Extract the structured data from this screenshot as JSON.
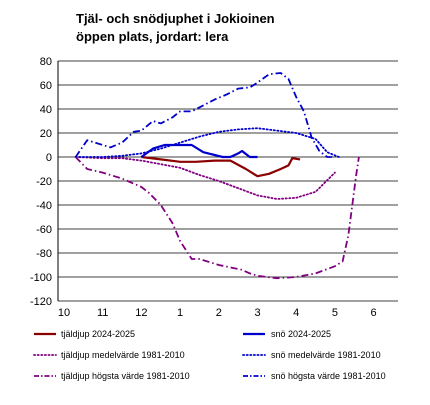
{
  "chart_data": {
    "type": "line",
    "title_lines": [
      "Tjäl- och snödjuphet i Jokioinen",
      "öppen plats, jordart: lera"
    ],
    "xlabel": "",
    "ylabel": "",
    "ylim": [
      -120,
      80
    ],
    "yticks": [
      -120,
      -100,
      -80,
      -60,
      -40,
      -20,
      0,
      20,
      40,
      60,
      80
    ],
    "xlim": [
      10,
      6.9
    ],
    "xticks": [
      "10",
      "11",
      "12",
      "1",
      "2",
      "3",
      "4",
      "5",
      "6"
    ],
    "grid": "horizontal",
    "legend_position": "bottom",
    "series": [
      {
        "name": "tjäldjup 2024-2025",
        "color": "#8b0000",
        "style": "solid",
        "points": [
          [
            12.0,
            0
          ],
          [
            12.5,
            -2
          ],
          [
            1.0,
            -4
          ],
          [
            1.4,
            -4
          ],
          [
            1.9,
            -3
          ],
          [
            2.3,
            -3
          ],
          [
            2.7,
            -10
          ],
          [
            3.0,
            -16
          ],
          [
            3.3,
            -14
          ],
          [
            3.6,
            -10
          ],
          [
            3.8,
            -7
          ],
          [
            3.9,
            -1
          ],
          [
            4.1,
            -2
          ]
        ]
      },
      {
        "name": "snö 2024-2025",
        "color": "#0000cc",
        "style": "solid",
        "points": [
          [
            12.0,
            0
          ],
          [
            12.3,
            7
          ],
          [
            12.6,
            10
          ],
          [
            1.0,
            10
          ],
          [
            1.3,
            10
          ],
          [
            1.6,
            4
          ],
          [
            2.1,
            0
          ],
          [
            2.3,
            0
          ],
          [
            2.5,
            3
          ],
          [
            2.6,
            5
          ],
          [
            2.8,
            0
          ],
          [
            3.0,
            0
          ]
        ]
      },
      {
        "name": "tjäldjup medelvärde 1981-2010",
        "color": "#800080",
        "style": "dotted",
        "points": [
          [
            10.3,
            0
          ],
          [
            11.0,
            -1
          ],
          [
            11.5,
            -1
          ],
          [
            12.0,
            -3
          ],
          [
            12.5,
            -6
          ],
          [
            1.0,
            -9
          ],
          [
            1.5,
            -15
          ],
          [
            2.0,
            -20
          ],
          [
            2.5,
            -26
          ],
          [
            3.0,
            -32
          ],
          [
            3.5,
            -35
          ],
          [
            4.0,
            -34
          ],
          [
            4.5,
            -29
          ],
          [
            5.0,
            -13
          ]
        ]
      },
      {
        "name": "snö medelvärde 1981-2010",
        "color": "#0000cc",
        "style": "dotted",
        "points": [
          [
            10.3,
            0
          ],
          [
            11.0,
            0
          ],
          [
            11.5,
            1
          ],
          [
            12.0,
            3
          ],
          [
            12.5,
            7
          ],
          [
            1.0,
            12
          ],
          [
            1.5,
            17
          ],
          [
            2.0,
            21
          ],
          [
            2.5,
            23
          ],
          [
            3.0,
            24
          ],
          [
            3.5,
            22
          ],
          [
            4.0,
            20
          ],
          [
            4.5,
            15
          ],
          [
            4.8,
            4
          ],
          [
            5.1,
            0
          ]
        ]
      },
      {
        "name": "tjäldjup högsta värde 1981-2010",
        "color": "#800080",
        "style": "dashdot",
        "points": [
          [
            10.3,
            0
          ],
          [
            10.6,
            -10
          ],
          [
            11.0,
            -13
          ],
          [
            11.5,
            -18
          ],
          [
            12.0,
            -25
          ],
          [
            12.2,
            -30
          ],
          [
            12.5,
            -40
          ],
          [
            12.8,
            -55
          ],
          [
            1.0,
            -70
          ],
          [
            1.3,
            -85
          ],
          [
            1.5,
            -85
          ],
          [
            1.8,
            -88
          ],
          [
            2.0,
            -90
          ],
          [
            2.3,
            -92
          ],
          [
            2.6,
            -94
          ],
          [
            2.8,
            -97
          ],
          [
            3.0,
            -99
          ],
          [
            3.5,
            -101
          ],
          [
            4.0,
            -100
          ],
          [
            4.5,
            -97
          ],
          [
            5.0,
            -91
          ],
          [
            5.2,
            -87
          ],
          [
            5.35,
            -65
          ],
          [
            5.45,
            -40
          ],
          [
            5.55,
            -15
          ],
          [
            5.62,
            0
          ]
        ]
      },
      {
        "name": "snö högsta värde 1981-2010",
        "color": "#0000cc",
        "style": "dashdot",
        "points": [
          [
            10.3,
            0
          ],
          [
            10.6,
            14
          ],
          [
            10.8,
            12
          ],
          [
            11.0,
            10
          ],
          [
            11.2,
            8
          ],
          [
            11.5,
            12
          ],
          [
            11.8,
            21
          ],
          [
            12.0,
            22
          ],
          [
            12.3,
            30
          ],
          [
            12.5,
            28
          ],
          [
            12.8,
            33
          ],
          [
            1.0,
            38
          ],
          [
            1.3,
            38
          ],
          [
            1.6,
            43
          ],
          [
            1.9,
            48
          ],
          [
            2.2,
            52
          ],
          [
            2.5,
            57
          ],
          [
            2.8,
            58
          ],
          [
            3.0,
            62
          ],
          [
            3.3,
            69
          ],
          [
            3.6,
            70
          ],
          [
            3.8,
            65
          ],
          [
            4.0,
            50
          ],
          [
            4.2,
            38
          ],
          [
            4.4,
            16
          ],
          [
            4.6,
            5
          ],
          [
            4.8,
            0
          ],
          [
            5.0,
            0
          ]
        ]
      }
    ]
  }
}
